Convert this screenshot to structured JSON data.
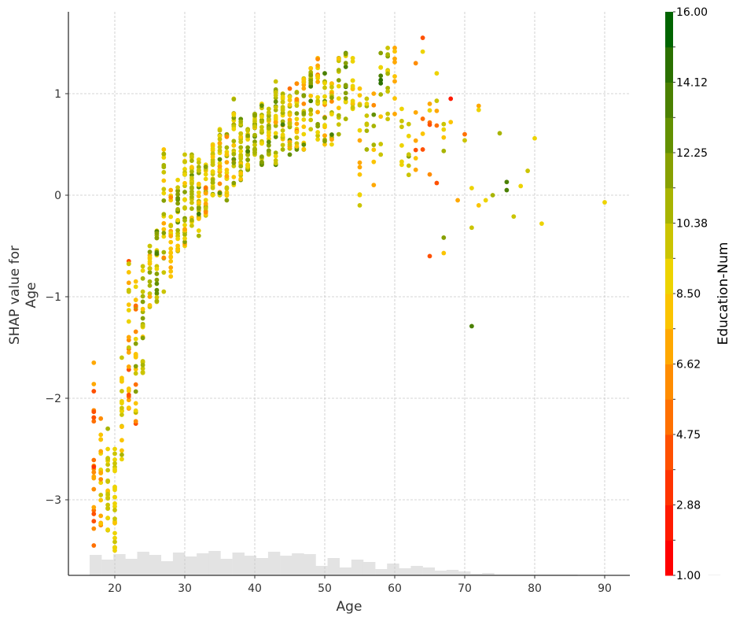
{
  "chart_data": {
    "type": "scatter",
    "title": "",
    "xlabel": "Age",
    "ylabel_lines": [
      "SHAP value for",
      "Age"
    ],
    "xlim": [
      13.5,
      94
    ],
    "ylim": [
      -3.75,
      1.8
    ],
    "x_ticks": [
      20,
      30,
      40,
      50,
      60,
      70,
      80,
      90
    ],
    "y_ticks": [
      1,
      0,
      -1,
      -2,
      -3
    ],
    "y_tick_labels": [
      "1",
      "0",
      "−1",
      "−2",
      "−3"
    ],
    "grid": true,
    "colorbar": {
      "title": "Education-Num",
      "range": [
        1.0,
        16.0
      ],
      "tick_labels": [
        "16.00",
        "14.12",
        "12.25",
        "10.38",
        "8.50",
        "6.62",
        "4.75",
        "2.88",
        "1.00"
      ],
      "segment_colors": [
        "#ff0000",
        "#ff1a00",
        "#ff3300",
        "#ff5000",
        "#ff7000",
        "#ff8c00",
        "#ffa800",
        "#fbc400",
        "#edd300",
        "#cbc400",
        "#a8b400",
        "#87a000",
        "#639000",
        "#4a8000",
        "#2a7000",
        "#006400"
      ]
    },
    "histogram": {
      "color": "#e3e3e3",
      "bin_width": 1.7,
      "bin_start": 16.4,
      "heights": [
        26,
        20,
        27,
        21,
        30,
        26,
        18,
        29,
        24,
        28,
        31,
        21,
        29,
        25,
        22,
        30,
        25,
        28,
        27,
        12,
        22,
        10,
        20,
        17,
        8,
        15,
        9,
        12,
        10,
        6,
        7,
        5,
        2,
        3,
        1,
        1,
        1,
        1,
        1,
        1,
        1,
        0.5,
        0.5,
        0,
        0,
        0,
        0,
        0,
        0,
        0,
        0,
        0,
        0.5
      ]
    },
    "series": [
      {
        "name": "Age 17",
        "x": 17,
        "shap_range": [
          -3.45,
          -1.65
        ],
        "edu_range": [
          3,
          8
        ],
        "n": 22
      },
      {
        "name": "Age 18",
        "x": 18,
        "shap_range": [
          -3.25,
          -2.2
        ],
        "edu_range": [
          5,
          10
        ],
        "n": 18
      },
      {
        "name": "Age 19",
        "x": 19,
        "shap_range": [
          -3.3,
          -2.3
        ],
        "edu_range": [
          8,
          11
        ],
        "n": 22
      },
      {
        "name": "Age 20",
        "x": 20,
        "shap_range": [
          -3.5,
          -2.5
        ],
        "edu_range": [
          8,
          10
        ],
        "n": 26
      },
      {
        "name": "Age 21",
        "x": 21,
        "shap_range": [
          -2.6,
          -1.6
        ],
        "edu_range": [
          7,
          11
        ],
        "n": 18
      },
      {
        "name": "Age 22",
        "x": 22,
        "shap_range": [
          -2.1,
          -0.65
        ],
        "edu_range": [
          3,
          12
        ],
        "n": 24
      },
      {
        "name": "Age 23",
        "x": 23,
        "shap_range": [
          -2.25,
          -0.85
        ],
        "edu_range": [
          4,
          13
        ],
        "n": 26
      },
      {
        "name": "Age 24",
        "x": 24,
        "shap_range": [
          -1.75,
          -0.7
        ],
        "edu_range": [
          7,
          13
        ],
        "n": 22
      },
      {
        "name": "Age 25",
        "x": 25,
        "shap_range": [
          -1.1,
          -0.5
        ],
        "edu_range": [
          6,
          13
        ],
        "n": 18
      },
      {
        "name": "Age 26",
        "x": 26,
        "shap_range": [
          -1.05,
          -0.35
        ],
        "edu_range": [
          7,
          14
        ],
        "n": 22
      },
      {
        "name": "Age 27",
        "x": 27,
        "shap_range": [
          -0.95,
          0.45
        ],
        "edu_range": [
          6,
          13
        ],
        "n": 22
      },
      {
        "name": "Age 28",
        "x": 28,
        "shap_range": [
          -0.8,
          0.05
        ],
        "edu_range": [
          5,
          12
        ],
        "n": 22
      },
      {
        "name": "Age 29",
        "x": 29,
        "shap_range": [
          -0.55,
          0.15
        ],
        "edu_range": [
          7,
          15
        ],
        "n": 24
      },
      {
        "name": "Age 30",
        "x": 30,
        "shap_range": [
          -0.5,
          0.4
        ],
        "edu_range": [
          6,
          13
        ],
        "n": 28
      },
      {
        "name": "Age 31",
        "x": 31,
        "shap_range": [
          -0.3,
          0.4
        ],
        "edu_range": [
          7,
          13
        ],
        "n": 28
      },
      {
        "name": "Age 32",
        "x": 32,
        "shap_range": [
          -0.4,
          0.35
        ],
        "edu_range": [
          6,
          14
        ],
        "n": 28
      },
      {
        "name": "Age 33",
        "x": 33,
        "shap_range": [
          -0.2,
          0.3
        ],
        "edu_range": [
          5,
          13
        ],
        "n": 26
      },
      {
        "name": "Age 34",
        "x": 34,
        "shap_range": [
          0.0,
          0.5
        ],
        "edu_range": [
          6,
          13
        ],
        "n": 24
      },
      {
        "name": "Age 35",
        "x": 35,
        "shap_range": [
          0.0,
          0.65
        ],
        "edu_range": [
          6,
          14
        ],
        "n": 26
      },
      {
        "name": "Age 36",
        "x": 36,
        "shap_range": [
          -0.05,
          0.6
        ],
        "edu_range": [
          5,
          13
        ],
        "n": 24
      },
      {
        "name": "Age 37",
        "x": 37,
        "shap_range": [
          0.1,
          0.95
        ],
        "edu_range": [
          5,
          14
        ],
        "n": 26
      },
      {
        "name": "Age 38",
        "x": 38,
        "shap_range": [
          0.15,
          0.75
        ],
        "edu_range": [
          7,
          13
        ],
        "n": 24
      },
      {
        "name": "Age 39",
        "x": 39,
        "shap_range": [
          0.25,
          0.65
        ],
        "edu_range": [
          8,
          14
        ],
        "n": 22
      },
      {
        "name": "Age 40",
        "x": 40,
        "shap_range": [
          0.4,
          0.8
        ],
        "edu_range": [
          7,
          14
        ],
        "n": 26
      },
      {
        "name": "Age 41",
        "x": 41,
        "shap_range": [
          0.3,
          0.9
        ],
        "edu_range": [
          6,
          14
        ],
        "n": 28
      },
      {
        "name": "Age 42",
        "x": 42,
        "shap_range": [
          0.4,
          0.85
        ],
        "edu_range": [
          7,
          14
        ],
        "n": 26
      },
      {
        "name": "Age 43",
        "x": 43,
        "shap_range": [
          0.3,
          1.12
        ],
        "edu_range": [
          6,
          15
        ],
        "n": 26
      },
      {
        "name": "Age 44",
        "x": 44,
        "shap_range": [
          0.45,
          1.0
        ],
        "edu_range": [
          6,
          14
        ],
        "n": 24
      },
      {
        "name": "Age 45",
        "x": 45,
        "shap_range": [
          0.4,
          1.05
        ],
        "edu_range": [
          5,
          14
        ],
        "n": 24
      },
      {
        "name": "Age 46",
        "x": 46,
        "shap_range": [
          0.45,
          1.1
        ],
        "edu_range": [
          3,
          14
        ],
        "n": 22
      },
      {
        "name": "Age 47",
        "x": 47,
        "shap_range": [
          0.45,
          1.15
        ],
        "edu_range": [
          4,
          14
        ],
        "n": 22
      },
      {
        "name": "Age 48",
        "x": 48,
        "shap_range": [
          0.65,
          1.25
        ],
        "edu_range": [
          7,
          14
        ],
        "n": 20
      },
      {
        "name": "Age 49",
        "x": 49,
        "shap_range": [
          0.55,
          1.35
        ],
        "edu_range": [
          5,
          14
        ],
        "n": 20
      },
      {
        "name": "Age 50",
        "x": 50,
        "shap_range": [
          0.5,
          1.2
        ],
        "edu_range": [
          3,
          14
        ],
        "n": 18
      },
      {
        "name": "Age 51",
        "x": 51,
        "shap_range": [
          0.5,
          1.1
        ],
        "edu_range": [
          4,
          14
        ],
        "n": 16
      },
      {
        "name": "Age 52",
        "x": 52,
        "shap_range": [
          0.6,
          1.35
        ],
        "edu_range": [
          6,
          14
        ],
        "n": 14
      },
      {
        "name": "Age 53",
        "x": 53,
        "shap_range": [
          0.75,
          1.4
        ],
        "edu_range": [
          5,
          15
        ],
        "n": 14
      },
      {
        "name": "Age 54",
        "x": 54,
        "shap_range": [
          0.85,
          1.35
        ],
        "edu_range": [
          6,
          11
        ],
        "n": 12
      },
      {
        "name": "Age 55",
        "x": 55,
        "shap_range": [
          -0.1,
          1.05
        ],
        "edu_range": [
          6,
          11
        ],
        "n": 12
      },
      {
        "name": "Age 56",
        "x": 56,
        "shap_range": [
          0.45,
          0.95
        ],
        "edu_range": [
          8,
          12
        ],
        "n": 8
      },
      {
        "name": "Age 57",
        "x": 57,
        "shap_range": [
          0.1,
          1.0
        ],
        "edu_range": [
          3,
          14
        ],
        "n": 8
      },
      {
        "name": "Age 58",
        "x": 58,
        "shap_range": [
          0.4,
          1.4
        ],
        "edu_range": [
          6,
          15
        ],
        "n": 10
      },
      {
        "name": "Age 59",
        "x": 59,
        "shap_range": [
          0.75,
          1.45
        ],
        "edu_range": [
          8,
          13
        ],
        "n": 10
      },
      {
        "name": "Age 60",
        "x": 60,
        "shap_range": [
          0.8,
          1.45
        ],
        "edu_range": [
          6,
          9
        ],
        "n": 8
      },
      {
        "name": "Age 61",
        "x": 61,
        "shap_range": [
          0.3,
          0.85
        ],
        "edu_range": [
          8,
          10
        ],
        "n": 6
      },
      {
        "name": "Age 62",
        "x": 62,
        "shap_range": [
          0.2,
          0.7
        ],
        "edu_range": [
          7,
          14
        ],
        "n": 6
      },
      {
        "name": "Age 63",
        "x": 63,
        "shap_range": [
          0.25,
          1.3
        ],
        "edu_range": [
          2,
          11
        ],
        "n": 6
      },
      {
        "name": "Age 64",
        "x": 64,
        "shap_range": [
          0.45,
          1.55
        ],
        "edu_range": [
          1,
          9
        ],
        "n": 5
      },
      {
        "name": "Age 65",
        "x": 65,
        "shap_range": [
          -0.6,
          0.9
        ],
        "edu_range": [
          3,
          10
        ],
        "n": 6
      },
      {
        "name": "Age 66",
        "x": 66,
        "shap_range": [
          0.12,
          1.2
        ],
        "edu_range": [
          2,
          10
        ],
        "n": 5
      },
      {
        "name": "Age 67",
        "x": 67,
        "shap_range": [
          -0.57,
          0.7
        ],
        "edu_range": [
          6,
          14
        ],
        "n": 6
      }
    ],
    "points": [
      {
        "x": 68,
        "y": 0.95,
        "edu": 2
      },
      {
        "x": 68,
        "y": 0.72,
        "edu": 8
      },
      {
        "x": 69,
        "y": -0.05,
        "edu": 7
      },
      {
        "x": 70,
        "y": 0.6,
        "edu": 5
      },
      {
        "x": 70,
        "y": 0.54,
        "edu": 10
      },
      {
        "x": 71,
        "y": 0.07,
        "edu": 9
      },
      {
        "x": 71,
        "y": -0.32,
        "edu": 10
      },
      {
        "x": 71,
        "y": -1.29,
        "edu": 14
      },
      {
        "x": 72,
        "y": 0.88,
        "edu": 7
      },
      {
        "x": 72,
        "y": 0.84,
        "edu": 9
      },
      {
        "x": 72,
        "y": -0.1,
        "edu": 8
      },
      {
        "x": 73,
        "y": -0.05,
        "edu": 9
      },
      {
        "x": 74,
        "y": 0.0,
        "edu": 11
      },
      {
        "x": 75,
        "y": 0.61,
        "edu": 11
      },
      {
        "x": 76,
        "y": 0.13,
        "edu": 14
      },
      {
        "x": 76,
        "y": 0.05,
        "edu": 14
      },
      {
        "x": 77,
        "y": -0.21,
        "edu": 10
      },
      {
        "x": 78,
        "y": 0.09,
        "edu": 9
      },
      {
        "x": 79,
        "y": 0.24,
        "edu": 10
      },
      {
        "x": 80,
        "y": 0.56,
        "edu": 9
      },
      {
        "x": 81,
        "y": -0.28,
        "edu": 9
      },
      {
        "x": 90,
        "y": -0.07,
        "edu": 9
      }
    ]
  }
}
